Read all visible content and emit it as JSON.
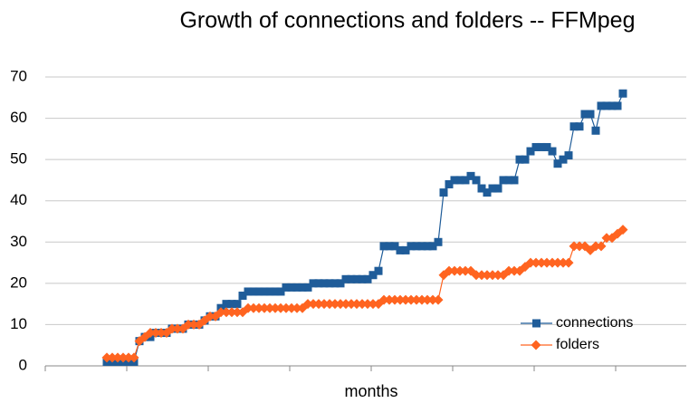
{
  "chart_data": {
    "type": "line",
    "title": "Growth of connections and folders -- FFMpeg",
    "x_label": "months",
    "categories": [
      null,
      null,
      null,
      null,
      null,
      null,
      null,
      null,
      null,
      null,
      null,
      null,
      null,
      null,
      null,
      null,
      null,
      null,
      null,
      null,
      null,
      null,
      null,
      null,
      null,
      null,
      null,
      null,
      null,
      null,
      null,
      null,
      null,
      null,
      null,
      null,
      null,
      null,
      null,
      null,
      null,
      null,
      null,
      null,
      null,
      null,
      null,
      null,
      null,
      null,
      null,
      null,
      null,
      null,
      null,
      null,
      null,
      null,
      null,
      null,
      null,
      null,
      null,
      null,
      null,
      null,
      null,
      null,
      null,
      null,
      null,
      null,
      null,
      null,
      null,
      null,
      null,
      null,
      null,
      null,
      null,
      null,
      null,
      null,
      null,
      null,
      null,
      null,
      null,
      null,
      null,
      null,
      null,
      null,
      null,
      null
    ],
    "series": [
      {
        "name": "connections",
        "color": "#1f5c99",
        "marker": "square",
        "values": [
          1,
          1,
          1,
          1,
          1,
          1,
          6,
          7,
          7,
          8,
          8,
          8,
          9,
          9,
          9,
          10,
          10,
          10,
          11,
          12,
          12,
          14,
          15,
          15,
          15,
          17,
          18,
          18,
          18,
          18,
          18,
          18,
          18,
          19,
          19,
          19,
          19,
          19,
          20,
          20,
          20,
          20,
          20,
          20,
          21,
          21,
          21,
          21,
          21,
          22,
          23,
          29,
          29,
          29,
          28,
          28,
          29,
          29,
          29,
          29,
          29,
          30,
          42,
          44,
          45,
          45,
          45,
          46,
          45,
          43,
          42,
          43,
          43,
          45,
          45,
          45,
          50,
          50,
          52,
          53,
          53,
          53,
          52,
          49,
          50,
          51,
          58,
          58,
          61,
          61,
          57,
          63,
          63,
          63,
          63,
          66
        ]
      },
      {
        "name": "folders",
        "color": "#ff6420",
        "marker": "diamond",
        "values": [
          2,
          2,
          2,
          2,
          2,
          2,
          6,
          7,
          8,
          8,
          8,
          8,
          9,
          9,
          9,
          10,
          10,
          10,
          11,
          12,
          12,
          13,
          13,
          13,
          13,
          13,
          14,
          14,
          14,
          14,
          14,
          14,
          14,
          14,
          14,
          14,
          14,
          15,
          15,
          15,
          15,
          15,
          15,
          15,
          15,
          15,
          15,
          15,
          15,
          15,
          15,
          16,
          16,
          16,
          16,
          16,
          16,
          16,
          16,
          16,
          16,
          16,
          22,
          23,
          23,
          23,
          23,
          23,
          22,
          22,
          22,
          22,
          22,
          22,
          23,
          23,
          23,
          24,
          25,
          25,
          25,
          25,
          25,
          25,
          25,
          25,
          29,
          29,
          29,
          28,
          29,
          29,
          31,
          31,
          32,
          33
        ]
      }
    ],
    "ylim": [
      0,
      70
    ],
    "yticks": [
      0,
      10,
      20,
      30,
      40,
      50,
      60,
      70
    ],
    "grid": true,
    "legend": "lower right"
  }
}
